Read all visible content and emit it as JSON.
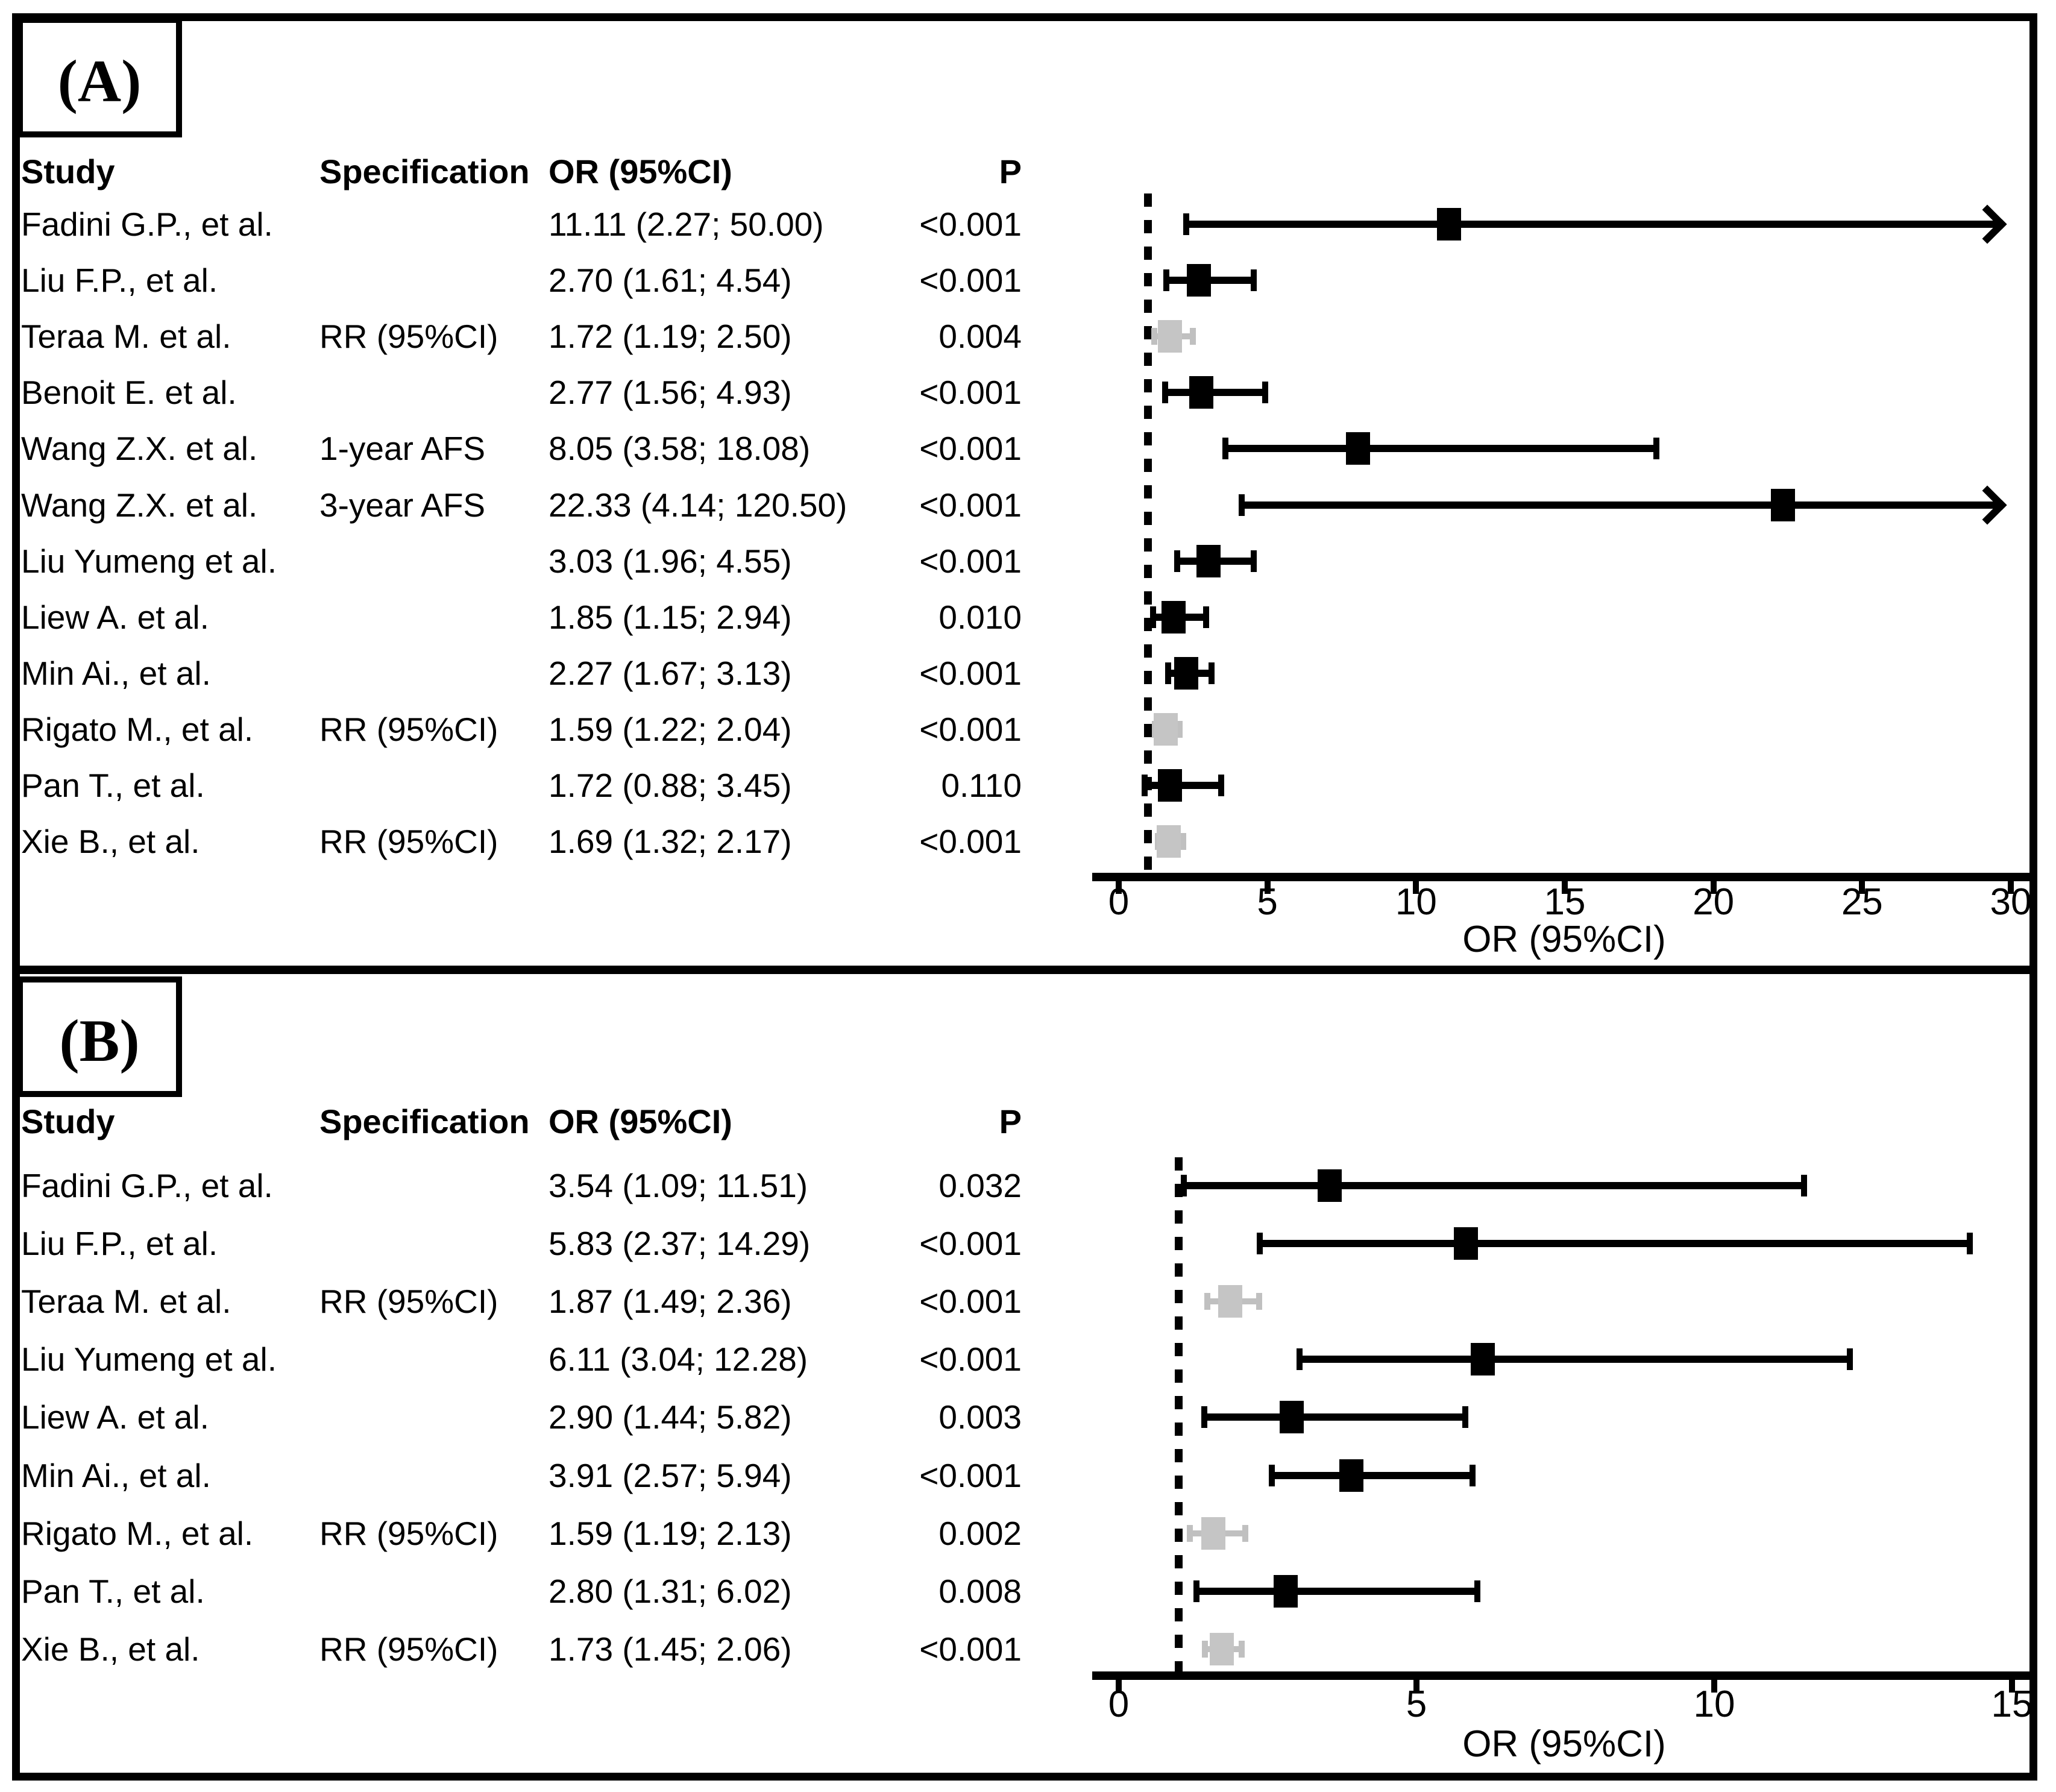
{
  "colors": {
    "estimate_black": "#000000",
    "estimate_gray": "#c5c5c5",
    "gray_line": "#c0c0c0",
    "axis_black": "#000000"
  },
  "chart_data": [
    {
      "type": "scatter",
      "variant": "forest-plot",
      "panel_label": "(A)",
      "xlabel": "OR (95%CI)",
      "xlim": [
        0,
        31
      ],
      "xticks": [
        0,
        5,
        10,
        15,
        20,
        25,
        30
      ],
      "reference_line_x": 1,
      "grid": false,
      "legend": "none",
      "columns": {
        "study": "Study",
        "specification": "Specification",
        "or_ci": "OR (95%CI)",
        "p": "P"
      },
      "rows": [
        {
          "study": "Fadini G.P., et al.",
          "specification": "",
          "or_ci": "11.11 (2.27; 50.00)",
          "p": "<0.001",
          "or": 11.11,
          "ci_low": 2.27,
          "ci_high": 50.0,
          "style": "black",
          "arrow_right": true
        },
        {
          "study": "Liu F.P., et al.",
          "specification": "",
          "or_ci": "2.70 (1.61; 4.54)",
          "p": "<0.001",
          "or": 2.7,
          "ci_low": 1.61,
          "ci_high": 4.54,
          "style": "black",
          "arrow_right": false
        },
        {
          "study": "Teraa M. et al.",
          "specification": "RR (95%CI)",
          "or_ci": "1.72 (1.19; 2.50)",
          "p": "0.004",
          "or": 1.72,
          "ci_low": 1.19,
          "ci_high": 2.5,
          "style": "gray",
          "arrow_right": false
        },
        {
          "study": "Benoit E. et al.",
          "specification": "",
          "or_ci": "2.77 (1.56; 4.93)",
          "p": "<0.001",
          "or": 2.77,
          "ci_low": 1.56,
          "ci_high": 4.93,
          "style": "black",
          "arrow_right": false
        },
        {
          "study": "Wang Z.X. et al.",
          "specification": "1-year AFS",
          "or_ci": "8.05 (3.58; 18.08)",
          "p": "<0.001",
          "or": 8.05,
          "ci_low": 3.58,
          "ci_high": 18.08,
          "style": "black",
          "arrow_right": false
        },
        {
          "study": "Wang Z.X. et al.",
          "specification": "3-year AFS",
          "or_ci": "22.33 (4.14; 120.50)",
          "p": "<0.001",
          "or": 22.33,
          "ci_low": 4.14,
          "ci_high": 120.5,
          "style": "black",
          "arrow_right": true
        },
        {
          "study": "Liu Yumeng et al.",
          "specification": "",
          "or_ci": "3.03 (1.96; 4.55)",
          "p": "<0.001",
          "or": 3.03,
          "ci_low": 1.96,
          "ci_high": 4.55,
          "style": "black",
          "arrow_right": false
        },
        {
          "study": "Liew A. et al.",
          "specification": "",
          "or_ci": "1.85 (1.15; 2.94)",
          "p": "0.010",
          "or": 1.85,
          "ci_low": 1.15,
          "ci_high": 2.94,
          "style": "black",
          "arrow_right": false
        },
        {
          "study": "Min Ai., et al.",
          "specification": "",
          "or_ci": "2.27 (1.67; 3.13)",
          "p": "<0.001",
          "or": 2.27,
          "ci_low": 1.67,
          "ci_high": 3.13,
          "style": "black",
          "arrow_right": false
        },
        {
          "study": "Rigato M., et al.",
          "specification": "RR (95%CI)",
          "or_ci": "1.59 (1.22; 2.04)",
          "p": "<0.001",
          "or": 1.59,
          "ci_low": 1.22,
          "ci_high": 2.04,
          "style": "gray",
          "arrow_right": false
        },
        {
          "study": "Pan T., et al.",
          "specification": "",
          "or_ci": "1.72 (0.88; 3.45)",
          "p": "0.110",
          "or": 1.72,
          "ci_low": 0.88,
          "ci_high": 3.45,
          "style": "black",
          "arrow_right": false
        },
        {
          "study": "Xie B., et al.",
          "specification": "RR (95%CI)",
          "or_ci": "1.69 (1.32; 2.17)",
          "p": "<0.001",
          "or": 1.69,
          "ci_low": 1.32,
          "ci_high": 2.17,
          "style": "gray",
          "arrow_right": false
        }
      ]
    },
    {
      "type": "scatter",
      "variant": "forest-plot",
      "panel_label": "(B)",
      "xlabel": "OR (95%CI)",
      "xlim": [
        0,
        15.7
      ],
      "xticks": [
        0,
        5,
        10,
        15
      ],
      "reference_line_x": 1,
      "grid": false,
      "legend": "none",
      "columns": {
        "study": "Study",
        "specification": "Specification",
        "or_ci": "OR (95%CI)",
        "p": "P"
      },
      "rows": [
        {
          "study": "Fadini G.P., et al.",
          "specification": "",
          "or_ci": "3.54 (1.09; 11.51)",
          "p": "0.032",
          "or": 3.54,
          "ci_low": 1.09,
          "ci_high": 11.51,
          "style": "black",
          "arrow_right": false
        },
        {
          "study": "Liu F.P., et al.",
          "specification": "",
          "or_ci": "5.83 (2.37; 14.29)",
          "p": "<0.001",
          "or": 5.83,
          "ci_low": 2.37,
          "ci_high": 14.29,
          "style": "black",
          "arrow_right": false
        },
        {
          "study": "Teraa M. et al.",
          "specification": "RR (95%CI)",
          "or_ci": "1.87 (1.49; 2.36)",
          "p": "<0.001",
          "or": 1.87,
          "ci_low": 1.49,
          "ci_high": 2.36,
          "style": "gray",
          "arrow_right": false
        },
        {
          "study": "Liu Yumeng et al.",
          "specification": "",
          "or_ci": "6.11 (3.04; 12.28)",
          "p": "<0.001",
          "or": 6.11,
          "ci_low": 3.04,
          "ci_high": 12.28,
          "style": "black",
          "arrow_right": false
        },
        {
          "study": "Liew A. et al.",
          "specification": "",
          "or_ci": "2.90 (1.44; 5.82)",
          "p": "0.003",
          "or": 2.9,
          "ci_low": 1.44,
          "ci_high": 5.82,
          "style": "black",
          "arrow_right": false
        },
        {
          "study": "Min Ai., et al.",
          "specification": "",
          "or_ci": "3.91 (2.57; 5.94)",
          "p": "<0.001",
          "or": 3.91,
          "ci_low": 2.57,
          "ci_high": 5.94,
          "style": "black",
          "arrow_right": false
        },
        {
          "study": "Rigato M., et al.",
          "specification": "RR (95%CI)",
          "or_ci": "1.59 (1.19; 2.13)",
          "p": "0.002",
          "or": 1.59,
          "ci_low": 1.19,
          "ci_high": 2.13,
          "style": "gray",
          "arrow_right": false
        },
        {
          "study": "Pan T., et al.",
          "specification": "",
          "or_ci": "2.80 (1.31; 6.02)",
          "p": "0.008",
          "or": 2.8,
          "ci_low": 1.31,
          "ci_high": 6.02,
          "style": "black",
          "arrow_right": false
        },
        {
          "study": "Xie B., et al.",
          "specification": "RR (95%CI)",
          "or_ci": "1.73 (1.45; 2.06)",
          "p": "<0.001",
          "or": 1.73,
          "ci_low": 1.45,
          "ci_high": 2.06,
          "style": "gray",
          "arrow_right": false
        }
      ]
    }
  ]
}
